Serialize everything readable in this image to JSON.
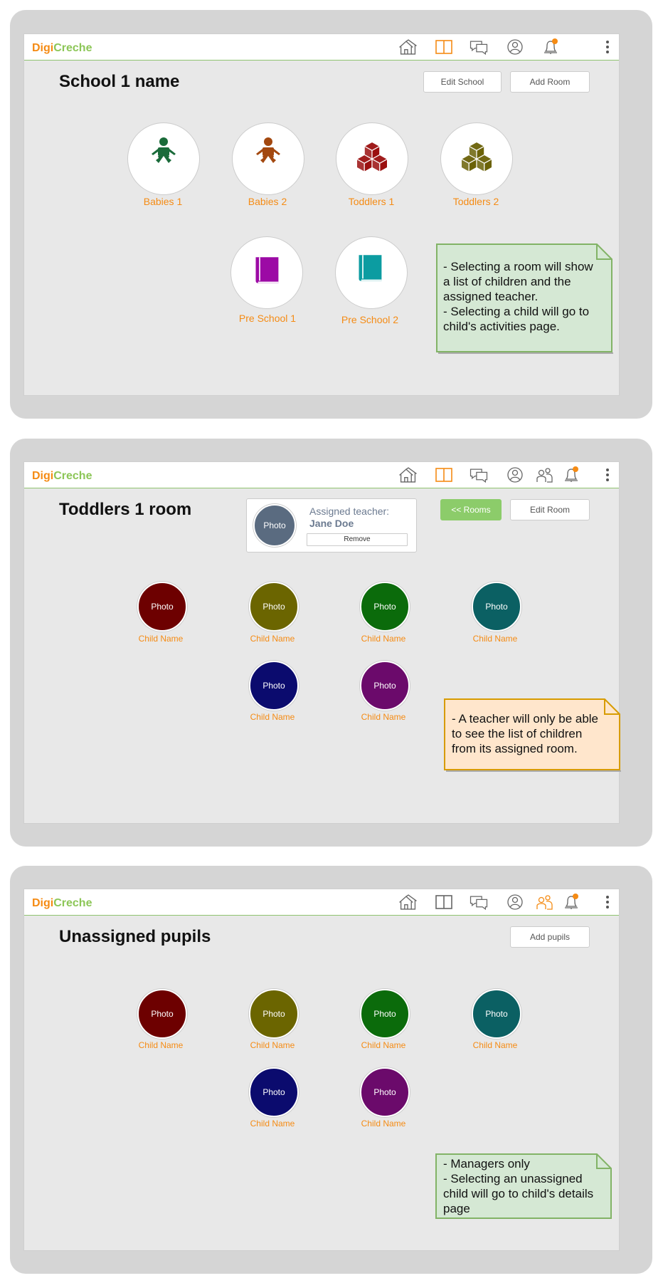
{
  "brand": {
    "part1": "Digi",
    "part2": "Creche"
  },
  "screen1": {
    "title": "School 1 name",
    "edit_button": "Edit School",
    "add_button": "Add Room",
    "rooms": [
      {
        "label": "Babies 1",
        "icon": "baby-icon",
        "color": "#1a6b3a"
      },
      {
        "label": "Babies 2",
        "icon": "baby-icon",
        "color": "#a3480f"
      },
      {
        "label": "Toddlers 1",
        "icon": "blocks-icon",
        "color": "#9b1010"
      },
      {
        "label": "Toddlers 2",
        "icon": "blocks-icon",
        "color": "#6b6208"
      },
      {
        "label": "Pre School 1",
        "icon": "book-icon",
        "color": "#9c0aa5"
      },
      {
        "label": "Pre School 2",
        "icon": "book-icon",
        "color": "#0c9ca1"
      }
    ],
    "note": [
      "- Selecting a room will show",
      "a list of children and the",
      "assigned teacher.",
      "- Selecting a child will go to",
      "child's activities page."
    ],
    "note_color": "#d5e8d4"
  },
  "screen2": {
    "title": "Toddlers 1 room",
    "teacher_photo": "Photo",
    "teacher_label": "Assigned teacher:",
    "teacher_name": "Jane Doe",
    "remove_button": "Remove",
    "back_button": "<< Rooms",
    "edit_button": "Edit Room",
    "children": [
      {
        "photo": "Photo",
        "name": "Child Name",
        "color": "#6d0000"
      },
      {
        "photo": "Photo",
        "name": "Child Name",
        "color": "#6b6500"
      },
      {
        "photo": "Photo",
        "name": "Child Name",
        "color": "#0b6b0b"
      },
      {
        "photo": "Photo",
        "name": "Child Name",
        "color": "#0b6063"
      },
      {
        "photo": "Photo",
        "name": "Child Name",
        "color": "#0b0b6e"
      },
      {
        "photo": "Photo",
        "name": "Child Name",
        "color": "#6b0a6b"
      }
    ],
    "note": [
      "- A teacher will only be able",
      "to see the list of children",
      "from its assigned room."
    ],
    "note_color": "#ffe6cc"
  },
  "screen3": {
    "title": "Unassigned pupils",
    "add_button": "Add pupils",
    "children": [
      {
        "photo": "Photo",
        "name": "Child Name",
        "color": "#6d0000"
      },
      {
        "photo": "Photo",
        "name": "Child Name",
        "color": "#6b6500"
      },
      {
        "photo": "Photo",
        "name": "Child Name",
        "color": "#0b6b0b"
      },
      {
        "photo": "Photo",
        "name": "Child Name",
        "color": "#0b6063"
      },
      {
        "photo": "Photo",
        "name": "Child Name",
        "color": "#0b0b6e"
      },
      {
        "photo": "Photo",
        "name": "Child Name",
        "color": "#6b0a6b"
      }
    ],
    "note": [
      "- Managers only",
      "- Selecting an unassigned",
      "child will go to child's details",
      "page"
    ],
    "note_color": "#d5e8d4"
  }
}
